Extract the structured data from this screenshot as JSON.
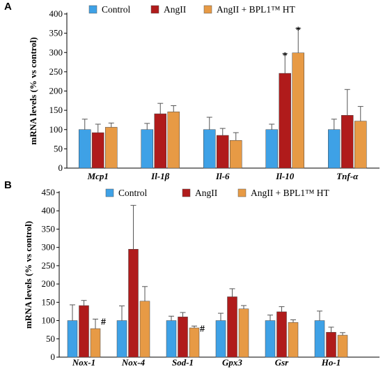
{
  "chart_data": [
    {
      "type": "bar",
      "panel_label": "A",
      "ylabel": "mRNA levels (% vs control)",
      "ylim": [
        0,
        400
      ],
      "yticks": [
        0,
        50,
        100,
        150,
        200,
        250,
        300,
        350,
        400
      ],
      "legend_position": "top",
      "categories": [
        "Mcp1",
        "Il-1β",
        "Il-6",
        "Il-10",
        "Tnf-α"
      ],
      "series": [
        {
          "name": "Control",
          "color": "#3ea1e6",
          "values": [
            100,
            100,
            100,
            100,
            100
          ],
          "error": [
            27,
            16,
            32,
            14,
            27
          ]
        },
        {
          "name": "AngII",
          "color": "#b01b1b",
          "values": [
            92,
            141,
            85,
            246,
            137
          ],
          "error": [
            22,
            27,
            18,
            51,
            67
          ]
        },
        {
          "name": "AngII + BPL1™ HT",
          "color": "#e79a45",
          "values": [
            106,
            146,
            72,
            299,
            122
          ],
          "error": [
            11,
            16,
            20,
            64,
            38
          ]
        }
      ],
      "annotations": [
        {
          "category": "Il-10",
          "series": "AngII",
          "text": "*"
        },
        {
          "category": "Il-10",
          "series": "AngII + BPL1™ HT",
          "text": "*"
        }
      ]
    },
    {
      "type": "bar",
      "panel_label": "B",
      "ylabel": "mRNA levels (% vs control)",
      "ylim": [
        0,
        450
      ],
      "yticks": [
        0,
        50,
        100,
        150,
        200,
        250,
        300,
        350,
        400,
        450
      ],
      "legend_position": "top",
      "categories": [
        "Nox-1",
        "Nox-4",
        "Sod-1",
        "Gpx3",
        "Gsr",
        "Ho-1"
      ],
      "series": [
        {
          "name": "Control",
          "color": "#3ea1e6",
          "values": [
            100,
            100,
            100,
            100,
            100,
            100
          ],
          "error": [
            43,
            40,
            12,
            20,
            15,
            26
          ]
        },
        {
          "name": "AngII",
          "color": "#b01b1b",
          "values": [
            141,
            295,
            110,
            165,
            124,
            68
          ],
          "error": [
            14,
            120,
            12,
            22,
            14,
            14
          ]
        },
        {
          "name": "AngII + BPL1™ HT",
          "color": "#e79a45",
          "values": [
            78,
            153,
            80,
            132,
            95,
            60
          ],
          "error": [
            26,
            40,
            5,
            9,
            7,
            7
          ]
        }
      ],
      "annotations": [
        {
          "category": "Nox-1",
          "series": "AngII + BPL1™ HT",
          "text": "#"
        },
        {
          "category": "Sod-1",
          "series": "AngII + BPL1™ HT",
          "text": "#"
        }
      ]
    }
  ]
}
